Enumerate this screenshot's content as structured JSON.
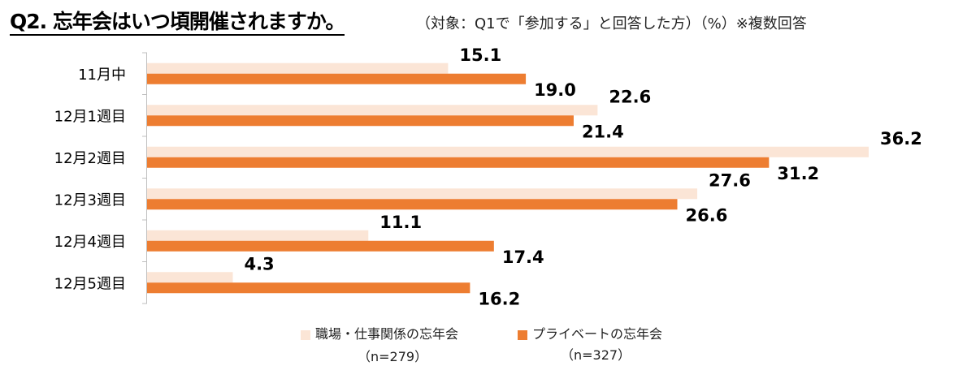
{
  "title": "Q2. 忘年会はいつ頃開催されますか。",
  "subtitle": "（対象：Q1で「参加する」と回答した方）（%）※複数回答",
  "chart_data": {
    "type": "bar",
    "orientation": "horizontal",
    "categories": [
      "11月中",
      "12月1週目",
      "12月2週目",
      "12月3週目",
      "12月4週目",
      "12月5週目"
    ],
    "series": [
      {
        "name": "職場・仕事関係の忘年会",
        "n": "（n=279）",
        "color": "#fbe5d6",
        "values": [
          15.1,
          22.6,
          36.2,
          27.6,
          11.1,
          4.3
        ],
        "highlight": [
          false,
          false,
          true,
          false,
          false,
          false
        ]
      },
      {
        "name": "プライベートの忘年会",
        "n": "（n=327）",
        "color": "#ed7d31",
        "values": [
          19.0,
          21.4,
          31.2,
          26.6,
          17.4,
          16.2
        ],
        "highlight": [
          false,
          false,
          true,
          false,
          false,
          false
        ]
      }
    ],
    "xlim": [
      0,
      36.5
    ],
    "highlight_color": "#e00000",
    "legend": "bottom",
    "grid": false
  }
}
